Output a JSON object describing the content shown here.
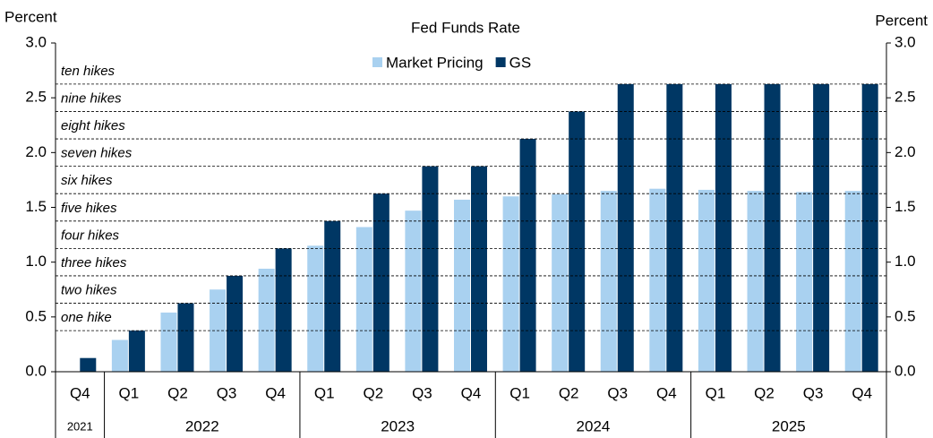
{
  "chart_data": {
    "type": "bar",
    "title": "Fed Funds Rate",
    "ylabel": "Percent",
    "y2label": "Percent",
    "categories": [
      "Q4",
      "Q1",
      "Q2",
      "Q3",
      "Q4",
      "Q1",
      "Q2",
      "Q3",
      "Q4",
      "Q1",
      "Q2",
      "Q3",
      "Q4",
      "Q1",
      "Q2",
      "Q3",
      "Q4"
    ],
    "category_years": [
      "2021",
      "2022",
      "2022",
      "2022",
      "2022",
      "2023",
      "2023",
      "2023",
      "2023",
      "2024",
      "2024",
      "2024",
      "2024",
      "2025",
      "2025",
      "2025",
      "2025"
    ],
    "series": [
      {
        "name": "Market Pricing",
        "color": "#a9d1f0",
        "values": [
          null,
          0.29,
          0.54,
          0.75,
          0.94,
          1.15,
          1.32,
          1.47,
          1.57,
          1.6,
          1.62,
          1.65,
          1.67,
          1.66,
          1.65,
          1.64,
          1.65
        ]
      },
      {
        "name": "GS",
        "color": "#003764",
        "values": [
          0.125,
          0.375,
          0.625,
          0.875,
          1.125,
          1.375,
          1.625,
          1.875,
          1.875,
          2.125,
          2.375,
          2.625,
          2.625,
          2.625,
          2.625,
          2.625,
          2.625
        ]
      }
    ],
    "reference_lines": [
      {
        "label": "one hike",
        "value": 0.375
      },
      {
        "label": "two hikes",
        "value": 0.625
      },
      {
        "label": "three hikes",
        "value": 0.875
      },
      {
        "label": "four hikes",
        "value": 1.125
      },
      {
        "label": "five hikes",
        "value": 1.375
      },
      {
        "label": "six hikes",
        "value": 1.625
      },
      {
        "label": "seven hikes",
        "value": 1.875
      },
      {
        "label": "eight hikes",
        "value": 2.125
      },
      {
        "label": "nine hikes",
        "value": 2.375
      },
      {
        "label": "ten hikes",
        "value": 2.625
      }
    ],
    "ylim": [
      0,
      3
    ],
    "yticks": [
      {
        "value": 0,
        "label": "0.0"
      },
      {
        "value": 0.5,
        "label": "0.5"
      },
      {
        "value": 1,
        "label": "1.0"
      },
      {
        "value": 1.5,
        "label": "1.5"
      },
      {
        "value": 2,
        "label": "2.0"
      },
      {
        "value": 2.5,
        "label": "2.5"
      },
      {
        "value": 3,
        "label": "3.0"
      }
    ],
    "y2lim": [
      0,
      3
    ],
    "y2ticks": [
      {
        "value": 0,
        "label": "0.0"
      },
      {
        "value": 0.5,
        "label": "0.5"
      },
      {
        "value": 1,
        "label": "1.0"
      },
      {
        "value": 1.5,
        "label": "1.5"
      },
      {
        "value": 2,
        "label": "2.0"
      },
      {
        "value": 2.5,
        "label": "2.5"
      },
      {
        "value": 3,
        "label": "3.0"
      }
    ],
    "legend": "top"
  }
}
